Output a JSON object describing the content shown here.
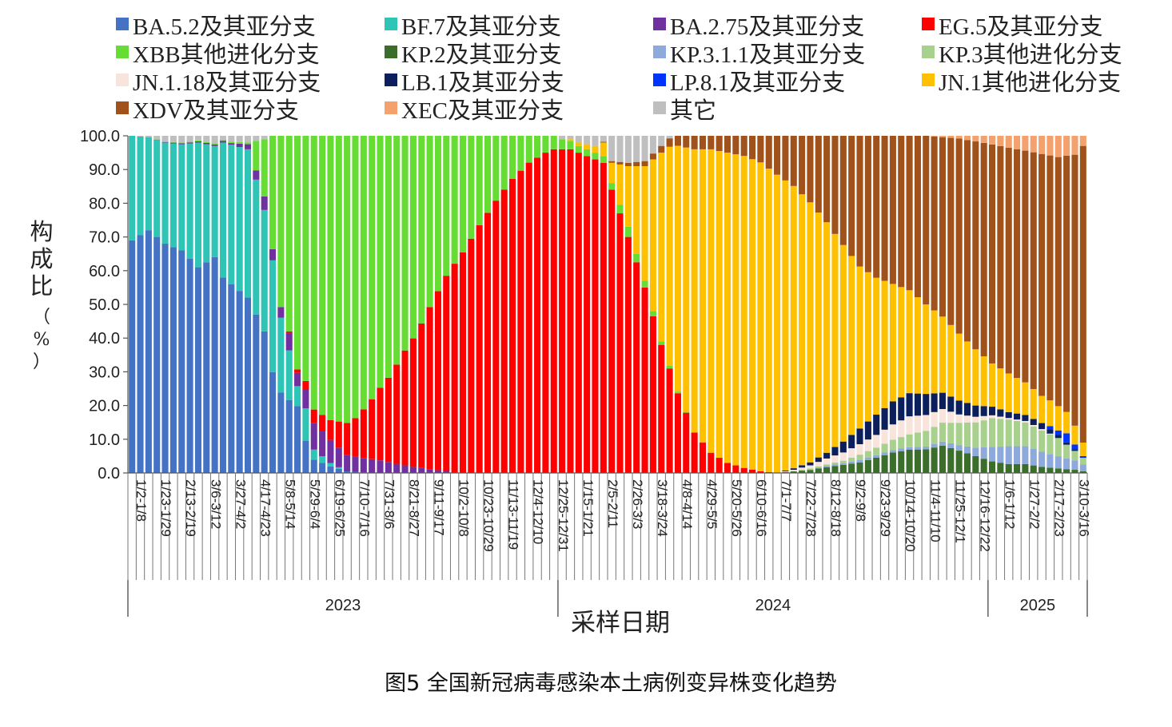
{
  "caption": "图5  全国新冠病毒感染本土病例变异株变化趋势",
  "chart_data": {
    "type": "bar",
    "stacked": true,
    "xlabel": "采样日期",
    "ylabel": "构成比（%）",
    "ylim": [
      0,
      100
    ],
    "yticks": [
      "0.0",
      "10.0",
      "20.0",
      "30.0",
      "40.0",
      "50.0",
      "60.0",
      "70.0",
      "80.0",
      "90.0",
      "100.0"
    ],
    "legend_position": "top",
    "weeks": 116,
    "xtick_labels": [
      "1/2-1/8",
      "1/23-1/29",
      "2/13-2/19",
      "3/6-3/12",
      "3/27-4/2",
      "4/17-4/23",
      "5/8-5/14",
      "5/29-6/4",
      "6/19-6/25",
      "7/10-7/16",
      "7/31-8/6",
      "8/21-8/27",
      "9/11-9/17",
      "10/2-10/8",
      "10/23-10/29",
      "11/13-11/19",
      "12/4-12/10",
      "12/25-12/31",
      "1/15-1/21",
      "2/5-2/11",
      "2/26-3/3",
      "3/18-3/24",
      "4/8-4/14",
      "4/29-5/5",
      "5/20-5/26",
      "6/10-6/16",
      "7/1-7/7",
      "7/22-7/28",
      "8/12-8/18",
      "9/2-9/8",
      "9/23-9/29",
      "10/14-10/20",
      "11/4-11/10",
      "11/25-12/1",
      "12/16-12/22",
      "1/6-1/12",
      "1/27-2/2",
      "2/17-2/23",
      "3/10-3/16"
    ],
    "years": [
      {
        "label": "2023",
        "start_week": 0,
        "end_week": 51
      },
      {
        "label": "2024",
        "start_week": 52,
        "end_week": 103
      },
      {
        "label": "2025",
        "start_week": 104,
        "end_week": 115
      }
    ],
    "series": [
      {
        "name": "BA.5.2及其亚分支",
        "color": "#4472C4",
        "points": [
          [
            0,
            69
          ],
          [
            2,
            72
          ],
          [
            4,
            68
          ],
          [
            6,
            66
          ],
          [
            8,
            61
          ],
          [
            10,
            64
          ],
          [
            11,
            58
          ],
          [
            14,
            52
          ],
          [
            16,
            42
          ],
          [
            18,
            30
          ],
          [
            20,
            20
          ],
          [
            21,
            10
          ],
          [
            22,
            4
          ],
          [
            24,
            2
          ],
          [
            26,
            0.5
          ],
          [
            30,
            0
          ]
        ]
      },
      {
        "name": "BF.7及其亚分支",
        "color": "#2EC4B6",
        "points": [
          [
            0,
            31
          ],
          [
            2,
            27.5
          ],
          [
            4,
            30
          ],
          [
            6,
            31.5
          ],
          [
            8,
            37
          ],
          [
            10,
            33
          ],
          [
            11,
            40
          ],
          [
            14,
            44
          ],
          [
            16,
            36
          ],
          [
            17,
            40
          ],
          [
            18,
            28
          ],
          [
            20,
            6
          ],
          [
            21,
            10
          ],
          [
            22,
            3
          ],
          [
            24,
            1
          ],
          [
            26,
            0
          ],
          [
            115,
            0
          ]
        ]
      },
      {
        "name": "BA.2.75及其亚分支",
        "color": "#7030A0",
        "points": [
          [
            0,
            0
          ],
          [
            12,
            0.5
          ],
          [
            14,
            1.5
          ],
          [
            16,
            4
          ],
          [
            18,
            4
          ],
          [
            19,
            6
          ],
          [
            20,
            4
          ],
          [
            22,
            8
          ],
          [
            24,
            7
          ],
          [
            26,
            5
          ],
          [
            30,
            4
          ],
          [
            34,
            2
          ],
          [
            38,
            0.5
          ],
          [
            40,
            0
          ],
          [
            115,
            0
          ]
        ]
      },
      {
        "name": "EG.5及其亚分支",
        "color": "#FF0000",
        "points": [
          [
            0,
            0
          ],
          [
            18,
            0
          ],
          [
            20,
            1
          ],
          [
            22,
            4
          ],
          [
            24,
            6
          ],
          [
            25,
            8
          ],
          [
            27,
            12
          ],
          [
            29,
            19
          ],
          [
            31,
            27
          ],
          [
            33,
            38
          ],
          [
            35,
            47
          ],
          [
            37,
            57
          ],
          [
            39,
            66
          ],
          [
            41,
            74
          ],
          [
            43,
            81
          ],
          [
            45,
            87
          ],
          [
            47,
            91
          ],
          [
            49,
            94
          ],
          [
            51,
            96
          ],
          [
            53,
            96
          ],
          [
            55,
            94
          ],
          [
            57,
            92
          ],
          [
            58,
            84
          ],
          [
            60,
            70
          ],
          [
            62,
            55
          ],
          [
            64,
            38
          ],
          [
            66,
            24
          ],
          [
            68,
            12
          ],
          [
            70,
            6
          ],
          [
            72,
            3
          ],
          [
            74,
            1.5
          ],
          [
            76,
            0.5
          ],
          [
            78,
            0
          ],
          [
            115,
            0
          ]
        ]
      },
      {
        "name": "XBB其他进化分支",
        "color": "#66DD33",
        "points": [
          [
            0,
            0
          ],
          [
            14,
            0.5
          ],
          [
            16,
            17
          ],
          [
            18,
            64
          ],
          [
            20,
            70
          ],
          [
            22,
            82
          ],
          [
            24,
            86
          ],
          [
            26,
            89
          ],
          [
            28,
            87
          ],
          [
            30,
            80
          ],
          [
            32,
            75
          ],
          [
            34,
            67
          ],
          [
            36,
            55
          ],
          [
            38,
            44
          ],
          [
            40,
            37
          ],
          [
            42,
            28
          ],
          [
            44,
            20
          ],
          [
            46,
            13
          ],
          [
            48,
            8
          ],
          [
            50,
            5
          ],
          [
            52,
            3
          ],
          [
            54,
            2
          ],
          [
            56,
            2
          ],
          [
            58,
            2
          ],
          [
            60,
            3
          ],
          [
            62,
            2
          ],
          [
            64,
            1
          ],
          [
            66,
            0.5
          ],
          [
            68,
            0
          ],
          [
            115,
            0
          ]
        ]
      },
      {
        "name": "KP.2及其亚分支",
        "color": "#3A6E2A",
        "points": [
          [
            0,
            0
          ],
          [
            78,
            0
          ],
          [
            80,
            0.5
          ],
          [
            82,
            1
          ],
          [
            84,
            2
          ],
          [
            86,
            3
          ],
          [
            88,
            4
          ],
          [
            90,
            6
          ],
          [
            92,
            8
          ],
          [
            94,
            9
          ],
          [
            96,
            9
          ],
          [
            98,
            10
          ],
          [
            100,
            8
          ],
          [
            102,
            6
          ],
          [
            104,
            4
          ],
          [
            106,
            3
          ],
          [
            108,
            3
          ],
          [
            110,
            2
          ],
          [
            112,
            1.5
          ],
          [
            114,
            1
          ],
          [
            115,
            0.5
          ]
        ]
      },
      {
        "name": "KP.3.1.1及其亚分支",
        "color": "#8EA9DB",
        "points": [
          [
            0,
            0
          ],
          [
            82,
            0
          ],
          [
            84,
            0.5
          ],
          [
            86,
            0.5
          ],
          [
            88,
            1
          ],
          [
            90,
            1
          ],
          [
            92,
            1
          ],
          [
            94,
            1
          ],
          [
            96,
            1
          ],
          [
            98,
            1.5
          ],
          [
            100,
            2
          ],
          [
            102,
            3
          ],
          [
            104,
            5
          ],
          [
            106,
            6
          ],
          [
            108,
            6
          ],
          [
            110,
            5
          ],
          [
            112,
            4
          ],
          [
            114,
            3
          ],
          [
            115,
            2
          ]
        ]
      },
      {
        "name": "KP.3其他进化分支",
        "color": "#A9D18E",
        "points": [
          [
            0,
            0
          ],
          [
            80,
            0
          ],
          [
            82,
            0.5
          ],
          [
            84,
            0.5
          ],
          [
            86,
            1
          ],
          [
            88,
            2
          ],
          [
            90,
            3
          ],
          [
            92,
            4
          ],
          [
            94,
            5
          ],
          [
            96,
            6
          ],
          [
            98,
            7
          ],
          [
            100,
            8
          ],
          [
            102,
            9
          ],
          [
            104,
            10
          ],
          [
            106,
            9
          ],
          [
            108,
            8
          ],
          [
            110,
            7
          ],
          [
            112,
            6
          ],
          [
            114,
            3
          ],
          [
            115,
            2
          ]
        ]
      },
      {
        "name": "JN.1.18及其亚分支",
        "color": "#F8E4DA",
        "points": [
          [
            0,
            0
          ],
          [
            78,
            0
          ],
          [
            80,
            0.5
          ],
          [
            82,
            1
          ],
          [
            84,
            2
          ],
          [
            86,
            3
          ],
          [
            88,
            4
          ],
          [
            90,
            5
          ],
          [
            92,
            6
          ],
          [
            94,
            7
          ],
          [
            96,
            6
          ],
          [
            98,
            5
          ],
          [
            100,
            3
          ],
          [
            102,
            2
          ],
          [
            104,
            1
          ],
          [
            106,
            0.5
          ],
          [
            108,
            0.5
          ],
          [
            110,
            0.5
          ],
          [
            112,
            0
          ],
          [
            115,
            0
          ]
        ]
      },
      {
        "name": "LB.1及其亚分支",
        "color": "#0A1F5C",
        "points": [
          [
            0,
            0
          ],
          [
            78,
            0
          ],
          [
            80,
            0.5
          ],
          [
            82,
            1
          ],
          [
            84,
            2
          ],
          [
            86,
            4
          ],
          [
            88,
            6
          ],
          [
            90,
            8
          ],
          [
            92,
            9
          ],
          [
            94,
            9
          ],
          [
            96,
            8
          ],
          [
            98,
            6
          ],
          [
            100,
            5
          ],
          [
            102,
            4
          ],
          [
            104,
            3
          ],
          [
            106,
            2
          ],
          [
            108,
            2
          ],
          [
            110,
            2
          ],
          [
            112,
            1
          ],
          [
            114,
            0.5
          ],
          [
            115,
            0
          ]
        ]
      },
      {
        "name": "LP.8.1及其亚分支",
        "color": "#0033FF",
        "points": [
          [
            0,
            0
          ],
          [
            110,
            0
          ],
          [
            111,
            1
          ],
          [
            112,
            1.5
          ],
          [
            113,
            3
          ],
          [
            114,
            1.5
          ],
          [
            115,
            0.5
          ]
        ]
      },
      {
        "name": "JN.1其他进化分支",
        "color": "#FFC000",
        "points": [
          [
            0,
            0
          ],
          [
            50,
            0
          ],
          [
            52,
            0
          ],
          [
            54,
            1
          ],
          [
            56,
            2
          ],
          [
            58,
            6
          ],
          [
            60,
            18
          ],
          [
            62,
            34
          ],
          [
            64,
            56
          ],
          [
            66,
            74
          ],
          [
            68,
            84
          ],
          [
            70,
            90
          ],
          [
            72,
            92
          ],
          [
            74,
            93
          ],
          [
            76,
            93
          ],
          [
            78,
            92
          ],
          [
            80,
            90
          ],
          [
            82,
            86
          ],
          [
            84,
            80
          ],
          [
            86,
            72
          ],
          [
            88,
            62
          ],
          [
            90,
            54
          ],
          [
            92,
            46
          ],
          [
            94,
            40
          ],
          [
            96,
            34
          ],
          [
            98,
            28
          ],
          [
            100,
            24
          ],
          [
            102,
            20
          ],
          [
            104,
            15
          ],
          [
            106,
            13
          ],
          [
            108,
            11
          ],
          [
            110,
            9
          ],
          [
            112,
            8
          ],
          [
            114,
            6
          ],
          [
            115,
            4
          ]
        ]
      },
      {
        "name": "XDV及其亚分支",
        "color": "#A0521A",
        "points": [
          [
            0,
            0
          ],
          [
            56,
            0
          ],
          [
            58,
            0.5
          ],
          [
            60,
            1
          ],
          [
            62,
            1.5
          ],
          [
            64,
            2
          ],
          [
            66,
            3
          ],
          [
            68,
            4
          ],
          [
            70,
            4
          ],
          [
            72,
            5
          ],
          [
            74,
            6
          ],
          [
            76,
            8
          ],
          [
            78,
            12
          ],
          [
            80,
            16
          ],
          [
            82,
            22
          ],
          [
            84,
            30
          ],
          [
            86,
            40
          ],
          [
            88,
            50
          ],
          [
            90,
            56
          ],
          [
            92,
            58
          ],
          [
            94,
            60
          ],
          [
            96,
            64
          ],
          [
            98,
            66
          ],
          [
            100,
            70
          ],
          [
            102,
            74
          ],
          [
            104,
            76
          ],
          [
            106,
            76
          ],
          [
            108,
            78
          ],
          [
            110,
            80
          ],
          [
            112,
            82
          ],
          [
            114,
            86
          ],
          [
            115,
            88
          ]
        ]
      },
      {
        "name": "XEC及其亚分支",
        "color": "#F4A16D",
        "points": [
          [
            0,
            0
          ],
          [
            96,
            0
          ],
          [
            98,
            0.5
          ],
          [
            100,
            1
          ],
          [
            102,
            2
          ],
          [
            104,
            3
          ],
          [
            106,
            4
          ],
          [
            108,
            5
          ],
          [
            110,
            6
          ],
          [
            112,
            7
          ],
          [
            114,
            6
          ],
          [
            115,
            3
          ]
        ]
      },
      {
        "name": "其它",
        "color": "#BFBFBF",
        "points": [
          [
            0,
            0
          ],
          [
            115,
            0
          ]
        ]
      }
    ]
  }
}
